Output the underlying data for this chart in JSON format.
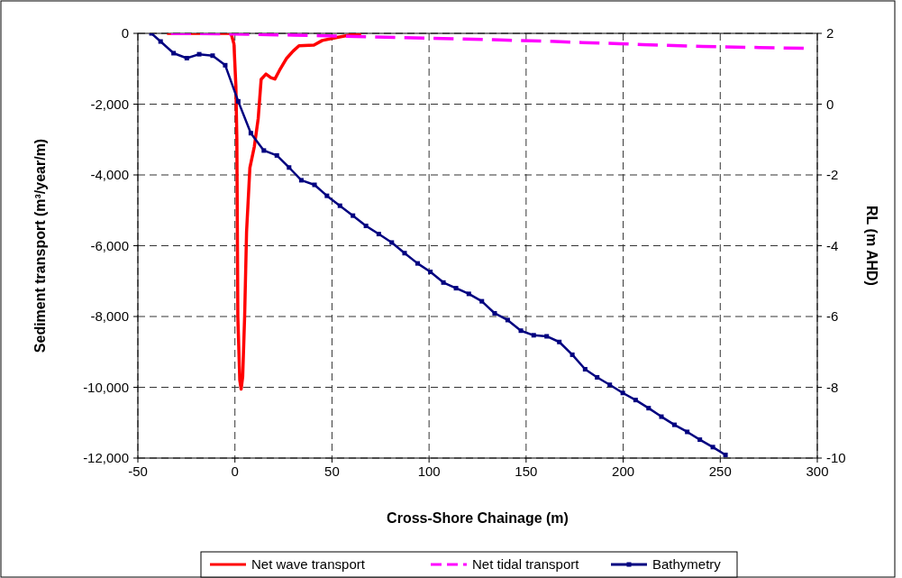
{
  "chart_data": {
    "type": "line",
    "xlabel": "Cross-Shore Chainage (m)",
    "ylabel": "Sediment transport (m³/year/m)",
    "y2label": "RL (m AHD)",
    "xlim": [
      -50,
      300
    ],
    "xticks": [
      -50,
      0,
      50,
      100,
      150,
      200,
      250,
      300
    ],
    "ylim": [
      -12000,
      0
    ],
    "yticks": [
      {
        "value": -12000,
        "label": "-12,000"
      },
      {
        "value": -10000,
        "label": "-10,000"
      },
      {
        "value": -8000,
        "label": "-8,000"
      },
      {
        "value": -6000,
        "label": "-6,000"
      },
      {
        "value": -4000,
        "label": "-4,000"
      },
      {
        "value": -2000,
        "label": "-2,000"
      },
      0
    ],
    "y2lim": [
      -10,
      2
    ],
    "y2ticks": [
      -10,
      -8,
      -6,
      -4,
      -2,
      0,
      2
    ],
    "grid": true,
    "legend": "bottom",
    "series": [
      {
        "name": "Net wave transport",
        "color": "#ff0000",
        "marker": "none",
        "line_style": "solid",
        "x": [
          -35,
          -10,
          -2,
          -0.5,
          0.5,
          1,
          1.5,
          2.5,
          3.2,
          4,
          5,
          6,
          7.7,
          10,
          12,
          13.5,
          16,
          18.5,
          20.6,
          22.9,
          26.7,
          30,
          33,
          40.7,
          45,
          52,
          60,
          65
        ],
        "values": [
          0,
          0,
          0,
          -300,
          -1500,
          -3000,
          -8000,
          -9800,
          -10050,
          -9700,
          -8000,
          -5600,
          -3800,
          -3200,
          -2400,
          -1300,
          -1150,
          -1250,
          -1290,
          -1050,
          -700,
          -500,
          -350,
          -330,
          -200,
          -120,
          -40,
          0
        ]
      },
      {
        "name": "Net tidal transport",
        "color": "#ff00ff",
        "marker": "none",
        "line_style": "dashed",
        "x": [
          -33,
          0,
          30,
          55,
          86,
          133,
          165,
          179,
          198,
          210,
          241,
          270,
          293
        ],
        "values": [
          0,
          -20,
          -50,
          -80,
          -120,
          -180,
          -230,
          -260,
          -290,
          -320,
          -370,
          -400,
          -420
        ]
      },
      {
        "name": "Bathymetry",
        "color": "#000080",
        "marker": "square",
        "line_style": "solid",
        "axis": "y2",
        "x": [
          -43,
          -38.3,
          -31.6,
          -24.8,
          -18.4,
          -11.5,
          -5,
          1.7,
          8.2,
          14.9,
          21.6,
          27.9,
          34.2,
          41,
          47.4,
          54.1,
          60.8,
          67.5,
          74.1,
          80.8,
          87.4,
          94.1,
          100.7,
          107.4,
          113.9,
          120.5,
          127.2,
          133.8,
          140.5,
          147.3,
          153.9,
          160.6,
          167.1,
          173.8,
          180.4,
          186.6,
          193.1,
          199.8,
          206.4,
          213.1,
          219.7,
          226.4,
          233,
          239.5,
          246.2,
          252.7
        ],
        "values": [
          2,
          1.77,
          1.44,
          1.3,
          1.41,
          1.37,
          1.1,
          0.08,
          -0.82,
          -1.31,
          -1.45,
          -1.79,
          -2.15,
          -2.28,
          -2.59,
          -2.87,
          -3.15,
          -3.44,
          -3.67,
          -3.91,
          -4.21,
          -4.5,
          -4.74,
          -5.04,
          -5.2,
          -5.36,
          -5.57,
          -5.91,
          -6.1,
          -6.4,
          -6.53,
          -6.56,
          -6.72,
          -7.08,
          -7.49,
          -7.72,
          -7.93,
          -8.16,
          -8.36,
          -8.59,
          -8.83,
          -9.06,
          -9.26,
          -9.48,
          -9.69,
          -9.91
        ]
      }
    ]
  }
}
